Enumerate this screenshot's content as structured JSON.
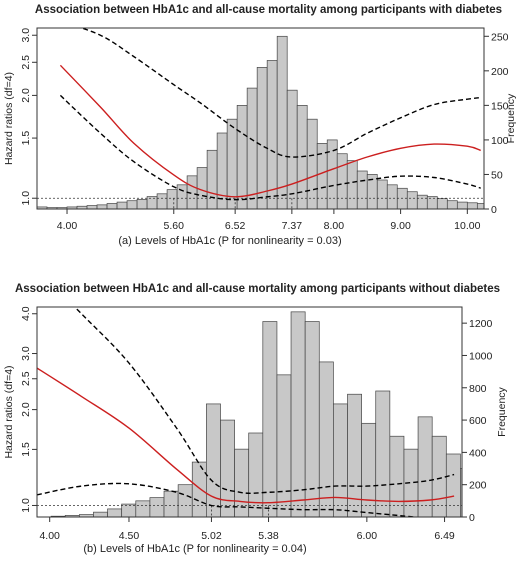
{
  "chart_data": [
    {
      "type": "histogram_with_spline",
      "title": "Association between HbA1c and all-cause mortality among participants with diabetes",
      "caption": "(a) Levels of HbA1c (P for nonlinearity = 0.03)",
      "ylabel_left": "Hazard ratios (df=4)",
      "ylabel_right": "Frequency",
      "x_ticks": [
        "4.00",
        "5.60",
        "6.52",
        "7.37",
        "8.00",
        "9.00",
        "10.00"
      ],
      "x_tick_values": [
        4.0,
        5.6,
        6.52,
        7.37,
        8.0,
        9.0,
        10.0
      ],
      "xlim": [
        3.55,
        10.25
      ],
      "y_left_ticks": [
        "1.0",
        "1.5",
        "2.0",
        "2.5",
        "3.0"
      ],
      "y_left_tick_values": [
        1.0,
        1.5,
        2.0,
        2.5,
        3.0
      ],
      "y_left_log": true,
      "y_left_lim": [
        0.93,
        3.15
      ],
      "y_right_ticks": [
        "0",
        "50",
        "100",
        "150",
        "200",
        "250"
      ],
      "y_right_lim": [
        0,
        262
      ],
      "reference_line": 1.0,
      "marked_points": [
        5.6,
        6.52,
        7.37
      ],
      "histogram": {
        "bin_start": 3.55,
        "bin_width": 0.15,
        "counts": [
          3,
          2,
          2,
          3,
          4,
          5,
          6,
          8,
          10,
          12,
          14,
          18,
          22,
          28,
          35,
          48,
          60,
          85,
          110,
          130,
          150,
          175,
          205,
          215,
          250,
          172,
          150,
          130,
          95,
          100,
          80,
          70,
          55,
          50,
          42,
          35,
          30,
          25,
          20,
          18,
          15,
          12,
          10,
          9,
          8,
          7,
          6,
          5
        ]
      },
      "spline": {
        "x": [
          3.9,
          4.5,
          5.0,
          5.6,
          6.0,
          6.52,
          7.0,
          7.37,
          8.0,
          8.5,
          9.0,
          9.5,
          10.0,
          10.2
        ],
        "hr": [
          2.45,
          1.85,
          1.45,
          1.17,
          1.06,
          1.01,
          1.05,
          1.1,
          1.22,
          1.32,
          1.4,
          1.44,
          1.42,
          1.38
        ],
        "lower": [
          2.0,
          1.55,
          1.28,
          1.08,
          1.02,
          0.99,
          1.01,
          1.03,
          1.09,
          1.13,
          1.16,
          1.15,
          1.1,
          1.07
        ],
        "upper": [
          3.3,
          3.0,
          2.6,
          2.15,
          1.9,
          1.6,
          1.4,
          1.32,
          1.38,
          1.55,
          1.72,
          1.88,
          1.95,
          1.97
        ]
      }
    },
    {
      "type": "histogram_with_spline",
      "title": "Association between HbA1c and all-cause mortality among  participants without diabetes",
      "caption": "(b) Levels of HbA1c (P for nonlinearity = 0.04)",
      "ylabel_left": "Hazard ratios (df=4)",
      "ylabel_right": "Frequency",
      "x_ticks": [
        "4.00",
        "4.50",
        "5.02",
        "5.38",
        "6.00",
        "6.49"
      ],
      "x_tick_values": [
        4.0,
        4.5,
        5.02,
        5.38,
        6.0,
        6.49
      ],
      "xlim": [
        3.92,
        6.6
      ],
      "y_left_ticks": [
        "1.0",
        "1.5",
        "2.0",
        "2.5",
        "3.0",
        "4.0"
      ],
      "y_left_tick_values": [
        1.0,
        1.5,
        2.0,
        2.5,
        3.0,
        4.0
      ],
      "y_left_log": true,
      "y_left_lim": [
        0.92,
        4.2
      ],
      "y_right_ticks": [
        "0",
        "200",
        "400",
        "600",
        "800",
        "1000",
        "1200"
      ],
      "y_right_lim": [
        0,
        1300
      ],
      "reference_line": 1.0,
      "marked_points": [
        5.02,
        5.38
      ],
      "histogram": {
        "bin_start": 3.92,
        "bin_width": 0.089,
        "counts": [
          0,
          5,
          10,
          15,
          30,
          50,
          80,
          100,
          120,
          160,
          200,
          340,
          700,
          600,
          420,
          520,
          1210,
          880,
          1270,
          1210,
          960,
          700,
          760,
          580,
          780,
          500,
          420,
          620,
          500,
          390,
          300,
          200
        ]
      },
      "spline": {
        "x": [
          3.92,
          4.2,
          4.5,
          4.8,
          5.02,
          5.2,
          5.38,
          5.6,
          5.8,
          6.0,
          6.2,
          6.4,
          6.55
        ],
        "hr": [
          2.7,
          2.2,
          1.75,
          1.3,
          1.07,
          1.03,
          1.02,
          1.04,
          1.06,
          1.04,
          1.03,
          1.04,
          1.07
        ],
        "lower": [
          1.08,
          1.15,
          1.17,
          1.1,
          1.0,
          0.99,
          0.98,
          0.97,
          0.97,
          0.95,
          0.93,
          0.91,
          0.9
        ],
        "upper": [
          5.5,
          4.0,
          2.8,
          1.75,
          1.2,
          1.1,
          1.1,
          1.12,
          1.15,
          1.15,
          1.17,
          1.2,
          1.25
        ]
      }
    }
  ]
}
